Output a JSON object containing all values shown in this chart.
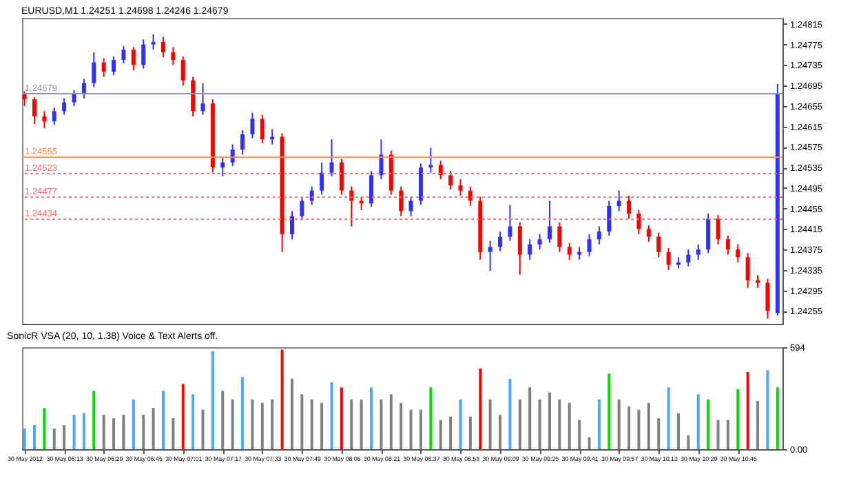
{
  "chart_data": [
    {
      "type": "candlestick",
      "title": "EURUSD,M1  1.24251 1.24698 1.24246 1.24679",
      "x": [
        "2012-05-30T05:57",
        "2012-05-30T06:01",
        "2012-05-30T06:05",
        "2012-05-30T06:09",
        "2012-05-30T06:13",
        "2012-05-30T06:17",
        "2012-05-30T06:21",
        "2012-05-30T06:25",
        "2012-05-30T06:29",
        "2012-05-30T06:33",
        "2012-05-30T06:37",
        "2012-05-30T06:41",
        "2012-05-30T06:45",
        "2012-05-30T06:49",
        "2012-05-30T06:53",
        "2012-05-30T06:57",
        "2012-05-30T07:01",
        "2012-05-30T07:05",
        "2012-05-30T07:09",
        "2012-05-30T07:13",
        "2012-05-30T07:17",
        "2012-05-30T07:21",
        "2012-05-30T07:25",
        "2012-05-30T07:29",
        "2012-05-30T07:33",
        "2012-05-30T07:37",
        "2012-05-30T07:41",
        "2012-05-30T07:45",
        "2012-05-30T07:49",
        "2012-05-30T07:53",
        "2012-05-30T07:57",
        "2012-05-30T08:01",
        "2012-05-30T08:05",
        "2012-05-30T08:09",
        "2012-05-30T08:13",
        "2012-05-30T08:17",
        "2012-05-30T08:21",
        "2012-05-30T08:25",
        "2012-05-30T08:29",
        "2012-05-30T08:33",
        "2012-05-30T08:37",
        "2012-05-30T08:41",
        "2012-05-30T08:45",
        "2012-05-30T08:49",
        "2012-05-30T08:53",
        "2012-05-30T08:57",
        "2012-05-30T09:01",
        "2012-05-30T09:05",
        "2012-05-30T09:09",
        "2012-05-30T09:13",
        "2012-05-30T09:17",
        "2012-05-30T09:21",
        "2012-05-30T09:25",
        "2012-05-30T09:29",
        "2012-05-30T09:33",
        "2012-05-30T09:37",
        "2012-05-30T09:41",
        "2012-05-30T09:45",
        "2012-05-30T09:49",
        "2012-05-30T09:53",
        "2012-05-30T09:57",
        "2012-05-30T10:01",
        "2012-05-30T10:05",
        "2012-05-30T10:09",
        "2012-05-30T10:13",
        "2012-05-30T10:17",
        "2012-05-30T10:21",
        "2012-05-30T10:25",
        "2012-05-30T10:29",
        "2012-05-30T10:33",
        "2012-05-30T10:37",
        "2012-05-30T10:41",
        "2012-05-30T10:45",
        "2012-05-30T10:49",
        "2012-05-30T10:53",
        "2012-05-30T10:57",
        "2012-05-30T11:01"
      ],
      "ohlc": [
        [
          1.2468,
          1.24684,
          1.24655,
          1.24668
        ],
        [
          1.24668,
          1.24672,
          1.2462,
          1.24635
        ],
        [
          1.24635,
          1.24645,
          1.24612,
          1.24625
        ],
        [
          1.24625,
          1.24652,
          1.24618,
          1.24645
        ],
        [
          1.24645,
          1.2467,
          1.24638,
          1.24662
        ],
        [
          1.24662,
          1.24686,
          1.24655,
          1.24678
        ],
        [
          1.24678,
          1.24708,
          1.2467,
          1.247
        ],
        [
          1.247,
          1.2476,
          1.24692,
          1.2474
        ],
        [
          1.2474,
          1.24748,
          1.24712,
          1.24722
        ],
        [
          1.24722,
          1.24752,
          1.24715,
          1.24745
        ],
        [
          1.24745,
          1.24772,
          1.24738,
          1.24765
        ],
        [
          1.24765,
          1.2477,
          1.24725,
          1.24735
        ],
        [
          1.24735,
          1.24785,
          1.24728,
          1.24775
        ],
        [
          1.24775,
          1.24795,
          1.24765,
          1.2478
        ],
        [
          1.2478,
          1.2479,
          1.2475,
          1.2476
        ],
        [
          1.2476,
          1.2477,
          1.24735,
          1.24745
        ],
        [
          1.24745,
          1.24752,
          1.24695,
          1.24705
        ],
        [
          1.24705,
          1.24712,
          1.24635,
          1.24645
        ],
        [
          1.24645,
          1.247,
          1.24638,
          1.2466
        ],
        [
          1.2466,
          1.24668,
          1.24525,
          1.24535
        ],
        [
          1.24535,
          1.24555,
          1.24518,
          1.24545
        ],
        [
          1.24545,
          1.2458,
          1.24538,
          1.2457
        ],
        [
          1.2457,
          1.24608,
          1.2456,
          1.246
        ],
        [
          1.246,
          1.24642,
          1.24592,
          1.2463
        ],
        [
          1.2463,
          1.24638,
          1.24582,
          1.2459
        ],
        [
          1.2459,
          1.2461,
          1.2458,
          1.24595
        ],
        [
          1.24595,
          1.24602,
          1.2437,
          1.24405
        ],
        [
          1.24405,
          1.2445,
          1.24395,
          1.2444
        ],
        [
          1.2444,
          1.24478,
          1.24432,
          1.2447
        ],
        [
          1.2447,
          1.24498,
          1.24462,
          1.2449
        ],
        [
          1.2449,
          1.24545,
          1.24482,
          1.24525
        ],
        [
          1.24525,
          1.2459,
          1.24518,
          1.24545
        ],
        [
          1.24545,
          1.24552,
          1.24482,
          1.2449
        ],
        [
          1.2449,
          1.24498,
          1.2442,
          1.2447
        ],
        [
          1.2447,
          1.24478,
          1.24452,
          1.24465
        ],
        [
          1.24465,
          1.24528,
          1.24458,
          1.2452
        ],
        [
          1.2452,
          1.2459,
          1.24512,
          1.2456
        ],
        [
          1.2456,
          1.24568,
          1.24482,
          1.2449
        ],
        [
          1.2449,
          1.24498,
          1.2444,
          1.2445
        ],
        [
          1.2445,
          1.24478,
          1.2444,
          1.2447
        ],
        [
          1.2447,
          1.24543,
          1.24462,
          1.24535
        ],
        [
          1.24535,
          1.24573,
          1.24525,
          1.2454
        ],
        [
          1.2454,
          1.24548,
          1.24512,
          1.2452
        ],
        [
          1.2452,
          1.24528,
          1.24492,
          1.245
        ],
        [
          1.245,
          1.24512,
          1.2448,
          1.2449
        ],
        [
          1.2449,
          1.24498,
          1.2446,
          1.2447
        ],
        [
          1.2447,
          1.24478,
          1.24355,
          1.2437
        ],
        [
          1.2437,
          1.24392,
          1.24333,
          1.2438
        ],
        [
          1.2438,
          1.2441,
          1.24372,
          1.244
        ],
        [
          1.244,
          1.24462,
          1.24392,
          1.2442
        ],
        [
          1.2442,
          1.24428,
          1.24326,
          1.24365
        ],
        [
          1.24365,
          1.24395,
          1.24355,
          1.24385
        ],
        [
          1.24385,
          1.24405,
          1.24375,
          1.24395
        ],
        [
          1.24395,
          1.2447,
          1.24388,
          1.2442
        ],
        [
          1.2442,
          1.24428,
          1.2437,
          1.2438
        ],
        [
          1.2438,
          1.24388,
          1.24355,
          1.24365
        ],
        [
          1.24365,
          1.2438,
          1.24355,
          1.2437
        ],
        [
          1.2437,
          1.24405,
          1.24362,
          1.24395
        ],
        [
          1.24395,
          1.2442,
          1.24385,
          1.2441
        ],
        [
          1.2441,
          1.2447,
          1.24402,
          1.2446
        ],
        [
          1.2446,
          1.2449,
          1.2445,
          1.2447
        ],
        [
          1.2447,
          1.2448,
          1.24435,
          1.24445
        ],
        [
          1.24445,
          1.24452,
          1.24405,
          1.24415
        ],
        [
          1.24415,
          1.24422,
          1.2439,
          1.244
        ],
        [
          1.244,
          1.24408,
          1.2436,
          1.2437
        ],
        [
          1.2437,
          1.24378,
          1.24335,
          1.24345
        ],
        [
          1.24345,
          1.2436,
          1.24338,
          1.2435
        ],
        [
          1.2435,
          1.24375,
          1.24342,
          1.24365
        ],
        [
          1.24365,
          1.24385,
          1.24355,
          1.24375
        ],
        [
          1.24375,
          1.24445,
          1.24368,
          1.24435
        ],
        [
          1.24435,
          1.24442,
          1.24385,
          1.24395
        ],
        [
          1.24395,
          1.24402,
          1.24365,
          1.24375
        ],
        [
          1.24375,
          1.24385,
          1.2435,
          1.2436
        ],
        [
          1.2436,
          1.24368,
          1.243,
          1.24315
        ],
        [
          1.24315,
          1.24325,
          1.243,
          1.2431
        ],
        [
          1.2431,
          1.24318,
          1.2424,
          1.24255
        ],
        [
          1.24251,
          1.24698,
          1.24246,
          1.24679
        ]
      ],
      "colors": [
        "#ff0000",
        "#ff0000",
        "#ff0000",
        "#3030ff",
        "#3030ff",
        "#3030ff",
        "#3030ff",
        "#3030ff",
        "#ff0000",
        "#3030ff",
        "#3030ff",
        "#ff0000",
        "#3030ff",
        "#3030ff",
        "#ff0000",
        "#ff0000",
        "#ff0000",
        "#ff0000",
        "#3030ff",
        "#ff0000",
        "#3030ff",
        "#3030ff",
        "#3030ff",
        "#3030ff",
        "#ff0000",
        "#3030ff",
        "#ff0000",
        "#3030ff",
        "#3030ff",
        "#3030ff",
        "#3030ff",
        "#3030ff",
        "#ff0000",
        "#ff0000",
        "#ff0000",
        "#3030ff",
        "#3030ff",
        "#ff0000",
        "#ff0000",
        "#3030ff",
        "#3030ff",
        "#3030ff",
        "#ff0000",
        "#ff0000",
        "#ff0000",
        "#ff0000",
        "#ff0000",
        "#3030ff",
        "#3030ff",
        "#3030ff",
        "#ff0000",
        "#3030ff",
        "#3030ff",
        "#3030ff",
        "#ff0000",
        "#ff0000",
        "#3030ff",
        "#3030ff",
        "#3030ff",
        "#3030ff",
        "#3030ff",
        "#ff0000",
        "#ff0000",
        "#ff0000",
        "#ff0000",
        "#ff0000",
        "#3030ff",
        "#3030ff",
        "#3030ff",
        "#3030ff",
        "#ff0000",
        "#ff0000",
        "#ff0000",
        "#ff0000",
        "#ff0000",
        "#ff0000",
        "#3030ff"
      ],
      "xlim": [
        "2012-05-30T05:56",
        "2012-05-30T11:03"
      ],
      "ylim": [
        1.2423,
        1.24827
      ],
      "yticks": [
        1.24815,
        1.24775,
        1.24735,
        1.24695,
        1.24655,
        1.24615,
        1.24575,
        1.24535,
        1.24495,
        1.24455,
        1.24415,
        1.24375,
        1.24335,
        1.24295,
        1.24255
      ],
      "tick_labels": "y",
      "ref_lines": [
        {
          "axis": "y",
          "value": 1.24679,
          "label": "1.24679",
          "color": "#9090b8",
          "line_style": "solid"
        },
        {
          "axis": "y",
          "value": 1.24555,
          "label": "1.24555",
          "color": "#ff8c50",
          "line_style": "solid"
        },
        {
          "axis": "y",
          "value": 1.24523,
          "label": "1.24523",
          "color": "#ff7070",
          "line_style": "dotted"
        },
        {
          "axis": "y",
          "value": 1.24477,
          "label": "1.24477",
          "color": "#ff7070",
          "line_style": "dotted"
        },
        {
          "axis": "y",
          "value": 1.24434,
          "label": "1.24434",
          "color": "#ff7070",
          "line_style": "dotted"
        }
      ]
    },
    {
      "type": "bar",
      "title": "SonicR VSA (20, 10, 1.38)  Voice & Text Alerts off.",
      "x": [
        "2012-05-30T05:57",
        "2012-05-30T06:01",
        "2012-05-30T06:05",
        "2012-05-30T06:09",
        "2012-05-30T06:13",
        "2012-05-30T06:17",
        "2012-05-30T06:21",
        "2012-05-30T06:25",
        "2012-05-30T06:29",
        "2012-05-30T06:33",
        "2012-05-30T06:37",
        "2012-05-30T06:41",
        "2012-05-30T06:45",
        "2012-05-30T06:49",
        "2012-05-30T06:53",
        "2012-05-30T06:57",
        "2012-05-30T07:01",
        "2012-05-30T07:05",
        "2012-05-30T07:09",
        "2012-05-30T07:13",
        "2012-05-30T07:17",
        "2012-05-30T07:21",
        "2012-05-30T07:25",
        "2012-05-30T07:29",
        "2012-05-30T07:33",
        "2012-05-30T07:37",
        "2012-05-30T07:41",
        "2012-05-30T07:45",
        "2012-05-30T07:49",
        "2012-05-30T07:53",
        "2012-05-30T07:57",
        "2012-05-30T08:01",
        "2012-05-30T08:05",
        "2012-05-30T08:09",
        "2012-05-30T08:13",
        "2012-05-30T08:17",
        "2012-05-30T08:21",
        "2012-05-30T08:25",
        "2012-05-30T08:29",
        "2012-05-30T08:33",
        "2012-05-30T08:37",
        "2012-05-30T08:41",
        "2012-05-30T08:45",
        "2012-05-30T08:49",
        "2012-05-30T08:53",
        "2012-05-30T08:57",
        "2012-05-30T09:01",
        "2012-05-30T09:05",
        "2012-05-30T09:09",
        "2012-05-30T09:13",
        "2012-05-30T09:17",
        "2012-05-30T09:21",
        "2012-05-30T09:25",
        "2012-05-30T09:29",
        "2012-05-30T09:33",
        "2012-05-30T09:37",
        "2012-05-30T09:41",
        "2012-05-30T09:45",
        "2012-05-30T09:49",
        "2012-05-30T09:53",
        "2012-05-30T09:57",
        "2012-05-30T10:01",
        "2012-05-30T10:05",
        "2012-05-30T10:09",
        "2012-05-30T10:13",
        "2012-05-30T10:17",
        "2012-05-30T10:21",
        "2012-05-30T10:25",
        "2012-05-30T10:29",
        "2012-05-30T10:33",
        "2012-05-30T10:37",
        "2012-05-30T10:41",
        "2012-05-30T10:45",
        "2012-05-30T10:49",
        "2012-05-30T10:53",
        "2012-05-30T10:57",
        "2012-05-30T11:01"
      ],
      "values": [
        120,
        140,
        240,
        120,
        140,
        200,
        210,
        340,
        200,
        180,
        200,
        290,
        200,
        240,
        340,
        180,
        380,
        320,
        230,
        570,
        340,
        290,
        420,
        290,
        270,
        290,
        580,
        410,
        320,
        290,
        270,
        390,
        360,
        290,
        290,
        360,
        290,
        320,
        270,
        230,
        230,
        360,
        170,
        190,
        290,
        190,
        470,
        290,
        200,
        410,
        290,
        360,
        290,
        330,
        290,
        270,
        170,
        70,
        290,
        440,
        290,
        250,
        230,
        270,
        180,
        360,
        210,
        80,
        320,
        290,
        170,
        170,
        350,
        450,
        280,
        460,
        360
      ],
      "colors": [
        "#4da6ff",
        "#4da6ff",
        "#00dd00",
        "#808080",
        "#808080",
        "#4da6ff",
        "#4da6ff",
        "#00dd00",
        "#808080",
        "#808080",
        "#808080",
        "#4da6ff",
        "#808080",
        "#808080",
        "#4da6ff",
        "#808080",
        "#ff0000",
        "#4da6ff",
        "#808080",
        "#4da6ff",
        "#808080",
        "#808080",
        "#4da6ff",
        "#808080",
        "#808080",
        "#808080",
        "#ff0000",
        "#808080",
        "#808080",
        "#808080",
        "#808080",
        "#4da6ff",
        "#ff0000",
        "#808080",
        "#808080",
        "#4da6ff",
        "#808080",
        "#808080",
        "#808080",
        "#808080",
        "#808080",
        "#00dd00",
        "#808080",
        "#808080",
        "#4da6ff",
        "#808080",
        "#ff0000",
        "#808080",
        "#808080",
        "#4da6ff",
        "#808080",
        "#808080",
        "#808080",
        "#808080",
        "#808080",
        "#808080",
        "#808080",
        "#808080",
        "#4da6ff",
        "#00dd00",
        "#808080",
        "#808080",
        "#808080",
        "#808080",
        "#808080",
        "#4da6ff",
        "#808080",
        "#808080",
        "#4da6ff",
        "#00dd00",
        "#808080",
        "#808080",
        "#00dd00",
        "#ff0000",
        "#808080",
        "#4da6ff",
        "#00dd00"
      ],
      "xlim": [
        "2012-05-30T05:56",
        "2012-05-30T11:03"
      ],
      "xticks": [
        {
          "value": "2012-05-30T05:57",
          "label": "30 May 2012"
        },
        {
          "value": "2012-05-30T06:13",
          "label": "30 May 06:13"
        },
        {
          "value": "2012-05-30T06:29",
          "label": "30 May 06:29"
        },
        {
          "value": "2012-05-30T06:45",
          "label": "30 May 06:45"
        },
        {
          "value": "2012-05-30T07:01",
          "label": "30 May 07:01"
        },
        {
          "value": "2012-05-30T07:17",
          "label": "30 May 07:17"
        },
        {
          "value": "2012-05-30T07:33",
          "label": "30 May 07:33"
        },
        {
          "value": "2012-05-30T07:49",
          "label": "30 May 07:49"
        },
        {
          "value": "2012-05-30T08:05",
          "label": "30 May 08:05"
        },
        {
          "value": "2012-05-30T08:21",
          "label": "30 May 08:21"
        },
        {
          "value": "2012-05-30T08:37",
          "label": "30 May 08:37"
        },
        {
          "value": "2012-05-30T08:53",
          "label": "30 May 08:53"
        },
        {
          "value": "2012-05-30T09:09",
          "label": "30 May 09:09"
        },
        {
          "value": "2012-05-30T09:25",
          "label": "30 May 09:25"
        },
        {
          "value": "2012-05-30T09:41",
          "label": "30 May 09:41"
        },
        {
          "value": "2012-05-30T09:57",
          "label": "30 May 09:57"
        },
        {
          "value": "2012-05-30T10:13",
          "label": "30 May 10:13"
        },
        {
          "value": "2012-05-30T10:29",
          "label": "30 May 10:29"
        },
        {
          "value": "2012-05-30T10:45",
          "label": "30 May 10:45"
        }
      ],
      "ylim": [
        0,
        594
      ],
      "yticks": [
        594,
        {
          "value": 0,
          "label": "0.00"
        }
      ]
    }
  ]
}
